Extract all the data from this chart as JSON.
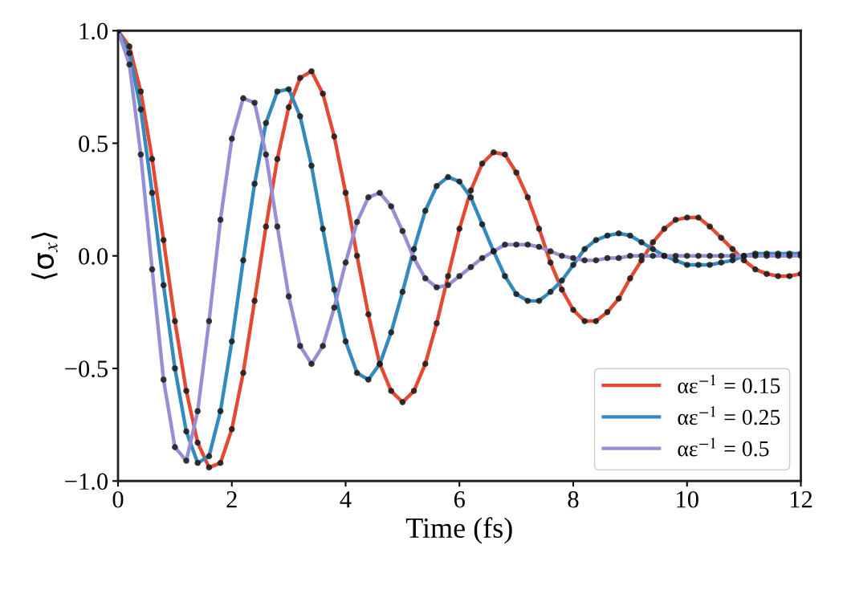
{
  "chart_data": {
    "type": "line",
    "xlabel": "Time (fs)",
    "ylabel": "⟨σ$_{x}$⟩",
    "x": [
      0,
      0.2,
      0.4,
      0.6,
      0.8,
      1.0,
      1.2,
      1.4,
      1.6,
      1.8,
      2.0,
      2.2,
      2.4,
      2.6,
      2.8,
      3.0,
      3.2,
      3.4,
      3.6,
      3.8,
      4.0,
      4.2,
      4.4,
      4.6,
      4.8,
      5.0,
      5.2,
      5.4,
      5.6,
      5.8,
      6.0,
      6.2,
      6.4,
      6.6,
      6.8,
      7.0,
      7.2,
      7.4,
      7.6,
      7.8,
      8.0,
      8.2,
      8.4,
      8.6,
      8.8,
      9.0,
      9.2,
      9.4,
      9.6,
      9.8,
      10.0,
      10.2,
      10.4,
      10.6,
      10.8,
      11.0,
      11.2,
      11.4,
      11.6,
      11.8,
      12.0
    ],
    "series": [
      {
        "name": "αε$^{−1}$ = 0.15",
        "color": "#e24a33",
        "values": [
          1.0,
          0.93,
          0.73,
          0.43,
          0.07,
          -0.29,
          -0.6,
          -0.83,
          -0.94,
          -0.92,
          -0.77,
          -0.52,
          -0.2,
          0.13,
          0.43,
          0.66,
          0.79,
          0.82,
          0.72,
          0.53,
          0.28,
          0.0,
          -0.26,
          -0.48,
          -0.6,
          -0.65,
          -0.6,
          -0.48,
          -0.3,
          -0.09,
          0.12,
          0.29,
          0.41,
          0.46,
          0.45,
          0.37,
          0.26,
          0.12,
          -0.03,
          -0.15,
          -0.24,
          -0.29,
          -0.29,
          -0.25,
          -0.19,
          -0.1,
          -0.02,
          0.06,
          0.12,
          0.16,
          0.17,
          0.17,
          0.13,
          0.08,
          0.03,
          -0.02,
          -0.06,
          -0.08,
          -0.09,
          -0.09,
          -0.08
        ]
      },
      {
        "name": "αε$^{−1}$ = 0.25",
        "color": "#348abd",
        "values": [
          1.0,
          0.9,
          0.65,
          0.28,
          -0.13,
          -0.5,
          -0.78,
          -0.92,
          -0.89,
          -0.69,
          -0.38,
          -0.02,
          0.32,
          0.59,
          0.73,
          0.74,
          0.62,
          0.4,
          0.12,
          -0.15,
          -0.38,
          -0.52,
          -0.55,
          -0.48,
          -0.34,
          -0.16,
          0.03,
          0.2,
          0.31,
          0.35,
          0.33,
          0.26,
          0.14,
          0.02,
          -0.09,
          -0.17,
          -0.2,
          -0.2,
          -0.16,
          -0.11,
          -0.04,
          0.03,
          0.07,
          0.09,
          0.1,
          0.09,
          0.06,
          0.03,
          0.0,
          -0.02,
          -0.04,
          -0.04,
          -0.04,
          -0.03,
          -0.02,
          0.0,
          0.01,
          0.01,
          0.01,
          0.01,
          0.01
        ]
      },
      {
        "name": "αε$^{−1}$ = 0.5",
        "color": "#988ed5",
        "values": [
          1.0,
          0.85,
          0.45,
          -0.06,
          -0.55,
          -0.85,
          -0.91,
          -0.69,
          -0.29,
          0.16,
          0.52,
          0.7,
          0.68,
          0.45,
          0.13,
          -0.18,
          -0.4,
          -0.48,
          -0.4,
          -0.23,
          -0.03,
          0.15,
          0.26,
          0.28,
          0.22,
          0.11,
          -0.01,
          -0.1,
          -0.14,
          -0.13,
          -0.09,
          -0.05,
          -0.01,
          0.02,
          0.05,
          0.05,
          0.05,
          0.04,
          0.02,
          0.0,
          -0.01,
          -0.02,
          -0.02,
          -0.01,
          -0.01,
          0.0,
          0.0,
          0.0,
          0.0,
          0.0,
          0.0,
          0.0,
          0.0,
          0.0,
          0.0,
          0.0,
          0.0,
          0.0,
          0.0,
          0.0,
          0.0
        ]
      },
      {
        "type": "scatter",
        "color": "#1a1a1a",
        "values": [
          1.0,
          0.93,
          0.73,
          0.43,
          0.07,
          -0.29,
          -0.6,
          -0.83,
          -0.94,
          -0.92,
          -0.77,
          -0.52,
          -0.2,
          0.13,
          0.43,
          0.66,
          0.79,
          0.82,
          0.72,
          0.53,
          0.28,
          0.0,
          -0.26,
          -0.48,
          -0.6,
          -0.65,
          -0.6,
          -0.48,
          -0.3,
          -0.09,
          0.12,
          0.29,
          0.41,
          0.46,
          0.45,
          0.37,
          0.26,
          0.12,
          -0.03,
          -0.15,
          -0.24,
          -0.29,
          -0.29,
          -0.25,
          -0.19,
          -0.1,
          -0.02,
          0.06,
          0.12,
          0.16,
          0.17,
          0.17,
          0.13,
          0.08,
          0.03,
          -0.02,
          -0.06,
          -0.08,
          -0.09,
          -0.09,
          -0.08
        ]
      },
      {
        "type": "scatter",
        "color": "#1a1a1a",
        "values": [
          1.0,
          0.9,
          0.65,
          0.28,
          -0.13,
          -0.5,
          -0.78,
          -0.92,
          -0.89,
          -0.69,
          -0.38,
          -0.02,
          0.32,
          0.59,
          0.73,
          0.74,
          0.62,
          0.4,
          0.12,
          -0.15,
          -0.38,
          -0.52,
          -0.55,
          -0.48,
          -0.34,
          -0.16,
          0.03,
          0.2,
          0.31,
          0.35,
          0.33,
          0.26,
          0.14,
          0.02,
          -0.09,
          -0.17,
          -0.2,
          -0.2,
          -0.16,
          -0.11,
          -0.04,
          0.03,
          0.07,
          0.09,
          0.1,
          0.09,
          0.06,
          0.03,
          0.0,
          -0.02,
          -0.04,
          -0.04,
          -0.04,
          -0.03,
          -0.02,
          0.0,
          0.01,
          0.01,
          0.01,
          0.01,
          0.01
        ]
      },
      {
        "type": "scatter",
        "color": "#1a1a1a",
        "values": [
          1.0,
          0.85,
          0.45,
          -0.06,
          -0.55,
          -0.85,
          -0.91,
          -0.69,
          -0.29,
          0.16,
          0.52,
          0.7,
          0.68,
          0.45,
          0.13,
          -0.18,
          -0.4,
          -0.48,
          -0.4,
          -0.23,
          -0.03,
          0.15,
          0.26,
          0.28,
          0.22,
          0.11,
          -0.01,
          -0.1,
          -0.14,
          -0.13,
          -0.09,
          -0.05,
          -0.01,
          0.02,
          0.05,
          0.05,
          0.05,
          0.04,
          0.02,
          0.0,
          -0.01,
          -0.02,
          -0.02,
          -0.01,
          -0.01,
          0.0,
          0.0,
          0.0,
          0.0,
          0.0,
          0.0,
          0.0,
          0.0,
          0.0,
          0.0,
          0.0,
          0.0,
          0.0,
          0.0,
          0.0,
          0.0
        ]
      }
    ],
    "xlim": [
      0,
      12
    ],
    "xticks": [
      0,
      2,
      4,
      6,
      8,
      10,
      12
    ],
    "ylim": [
      -1.0,
      1.0
    ],
    "yticks": [
      {
        "value": -1.0,
        "label": "−1.0"
      },
      {
        "value": -0.5,
        "label": "−0.5"
      },
      {
        "value": 0.0,
        "label": "0.0"
      },
      {
        "value": 0.5,
        "label": "0.5"
      },
      {
        "value": 1.0,
        "label": "1.0"
      }
    ],
    "legend": "bottom right",
    "grid": false
  }
}
